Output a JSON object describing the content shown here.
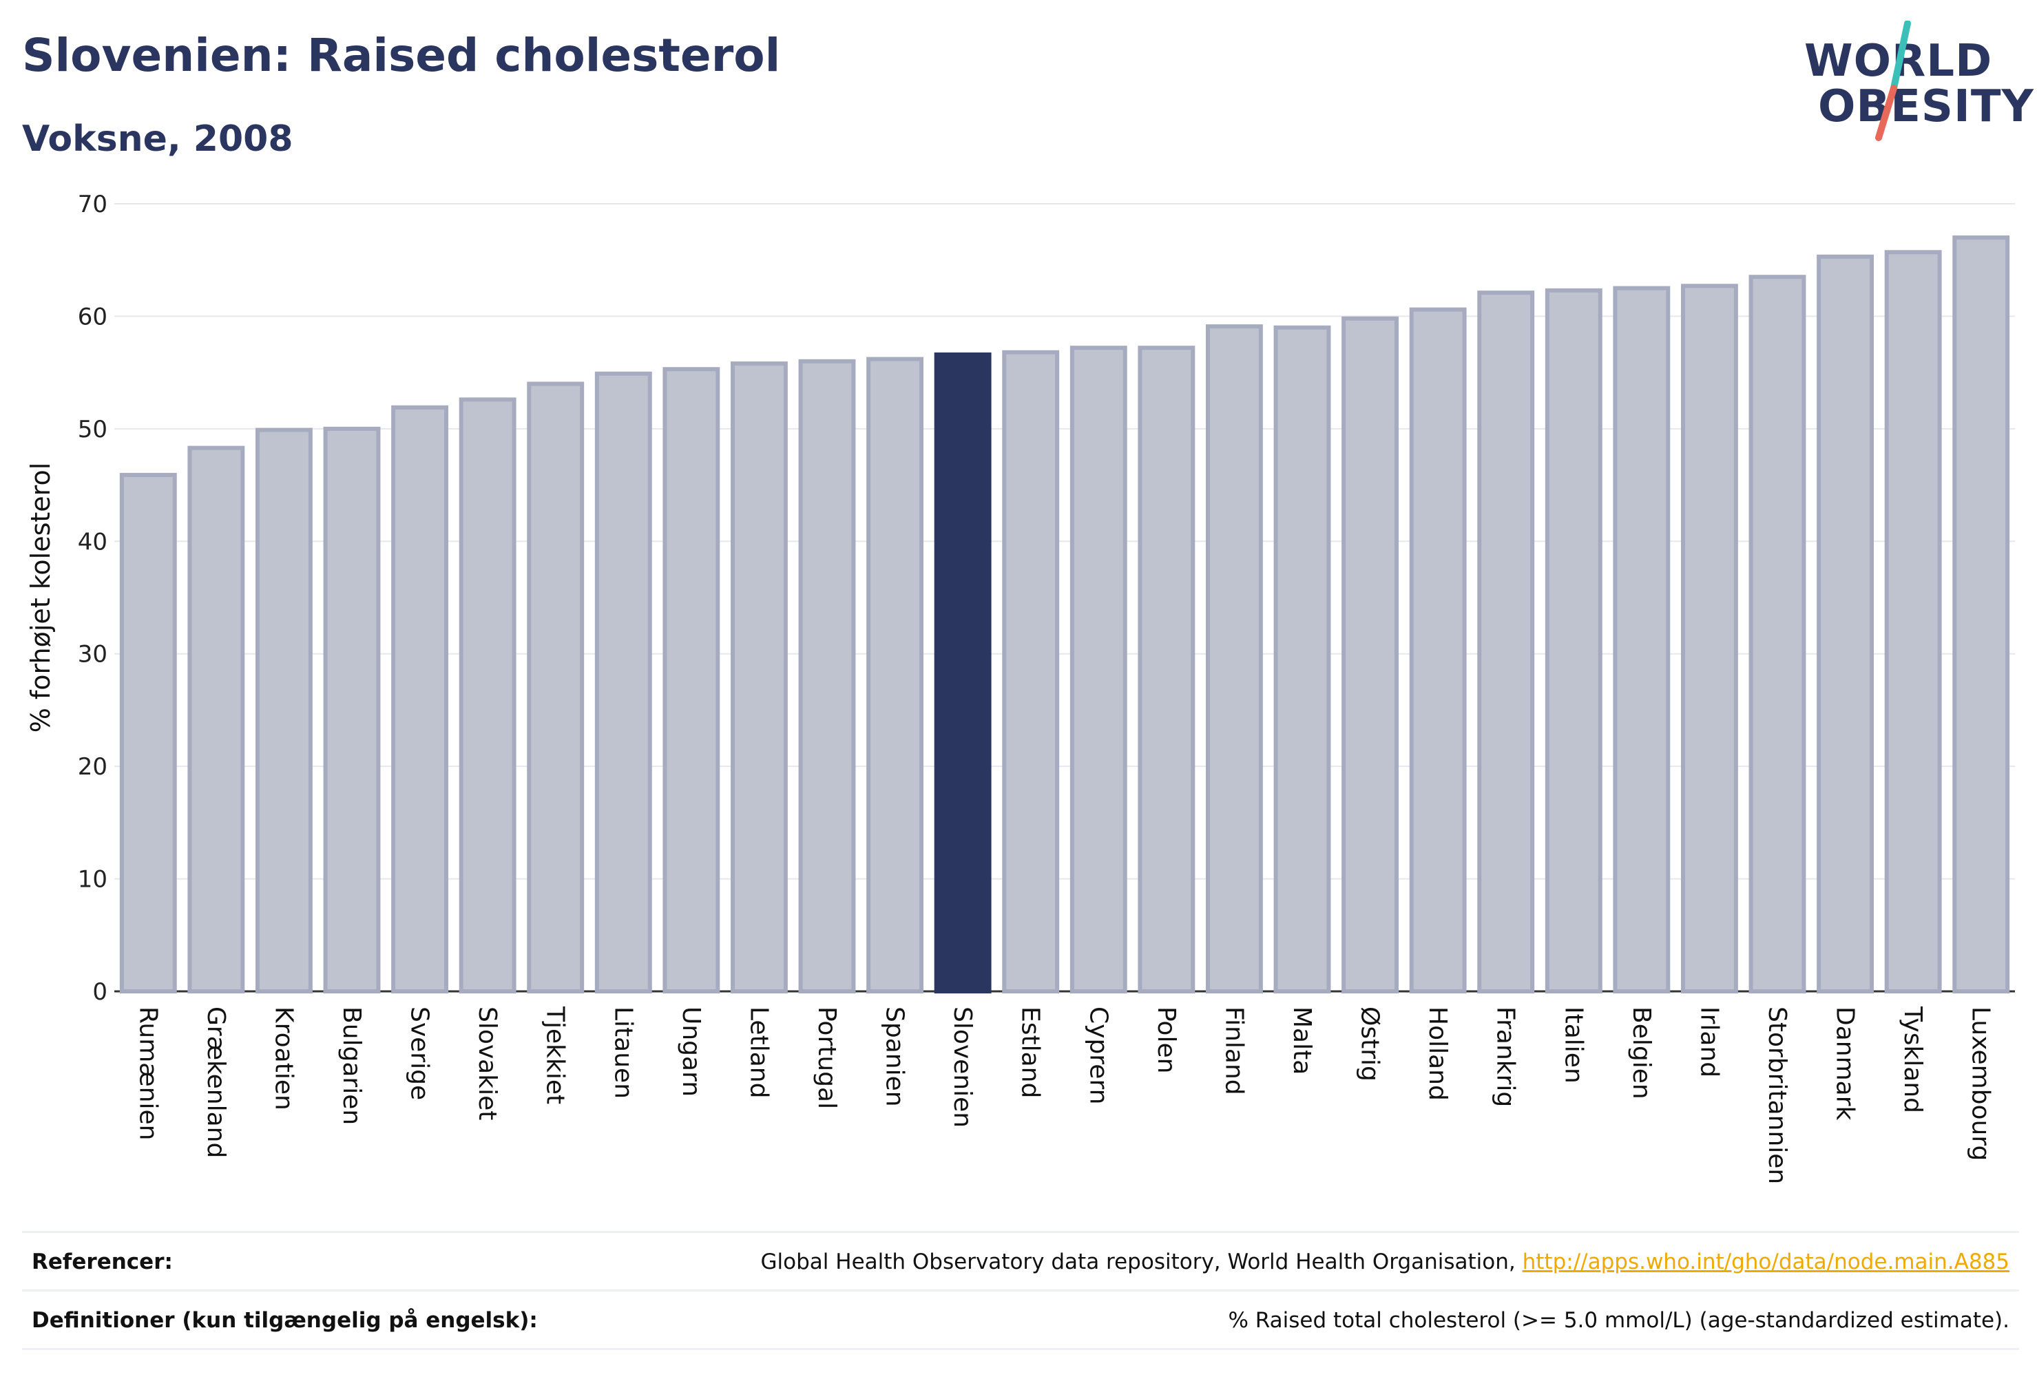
{
  "header": {
    "title": "Slovenien: Raised cholesterol",
    "subtitle": "Voksne, 2008"
  },
  "logo": {
    "line1": "WORLD",
    "line2": "OBESITY",
    "accent_teal": "#3bbfb8",
    "accent_red": "#e8695a"
  },
  "colors": {
    "bar_default": "#bfc3d0",
    "bar_default_border": "#a6abbf",
    "bar_highlight": "#2a3560",
    "text_dark": "#2a3560",
    "grid": "#e6e8ee"
  },
  "chart_data": {
    "type": "bar",
    "ylabel": "% forhøjet kolesterol",
    "ylim": [
      0,
      70
    ],
    "yticks": [
      0,
      10,
      20,
      30,
      40,
      50,
      60,
      70
    ],
    "grid": true,
    "highlight": "Slovenien",
    "categories": [
      "Rumænien",
      "Grækenland",
      "Kroatien",
      "Bulgarien",
      "Sverige",
      "Slovakiet",
      "Tjekkiet",
      "Litauen",
      "Ungarn",
      "Letland",
      "Portugal",
      "Spanien",
      "Slovenien",
      "Estland",
      "Cyprern",
      "Polen",
      "Finland",
      "Malta",
      "Østrig",
      "Holland",
      "Frankrig",
      "Italien",
      "Belgien",
      "Irland",
      "Storbritannien",
      "Danmark",
      "Tyskland",
      "Luxembourg"
    ],
    "values": [
      45.9,
      48.3,
      49.9,
      50.0,
      51.9,
      52.6,
      54.0,
      54.9,
      55.3,
      55.8,
      56.0,
      56.2,
      56.6,
      56.8,
      57.2,
      57.2,
      59.1,
      59.0,
      59.8,
      60.6,
      62.1,
      62.3,
      62.5,
      62.7,
      63.5,
      65.3,
      65.7,
      67.0
    ]
  },
  "references": {
    "ref_label": "Referencer:",
    "ref_text": "Global Health Observatory data repository, World Health Organisation, ",
    "ref_link": "http://apps.who.int/gho/data/node.main.A885",
    "def_label": "Definitioner (kun tilgængelig på engelsk):",
    "def_text": "% Raised total cholesterol (>= 5.0 mmol/L) (age-standardized estimate)."
  }
}
